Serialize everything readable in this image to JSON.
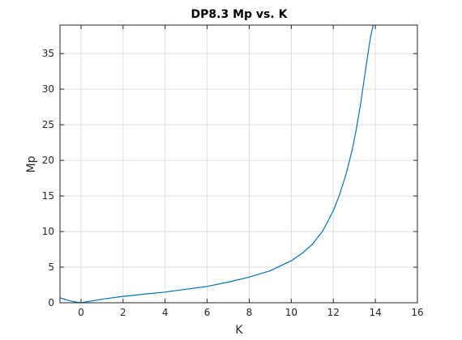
{
  "chart_data": {
    "type": "line",
    "title": "DP8.3 Mp vs. K",
    "xlabel": "K",
    "ylabel": "Mp",
    "xlim": [
      -1,
      16
    ],
    "ylim": [
      0,
      39
    ],
    "xticks": [
      0,
      2,
      4,
      6,
      8,
      10,
      12,
      14,
      16
    ],
    "yticks": [
      0,
      5,
      10,
      15,
      20,
      25,
      30,
      35
    ],
    "grid": true,
    "series": [
      {
        "color": "#0072BD",
        "x": [
          -1,
          -0.75,
          -0.5,
          -0.25,
          0,
          0.5,
          1,
          2,
          3,
          4,
          5,
          6,
          7,
          8,
          9,
          10,
          10.5,
          11,
          11.5,
          12,
          12.3,
          12.6,
          12.9,
          13.1,
          13.3,
          13.5,
          13.65,
          13.78,
          13.9
        ],
        "y": [
          0.7,
          0.45,
          0.25,
          0.1,
          0.0,
          0.25,
          0.5,
          0.9,
          1.2,
          1.5,
          1.9,
          2.3,
          2.9,
          3.6,
          4.5,
          5.9,
          6.9,
          8.2,
          10.1,
          12.9,
          15.2,
          18.0,
          21.5,
          24.5,
          28.0,
          32.0,
          35.0,
          37.5,
          39.0
        ]
      }
    ]
  }
}
